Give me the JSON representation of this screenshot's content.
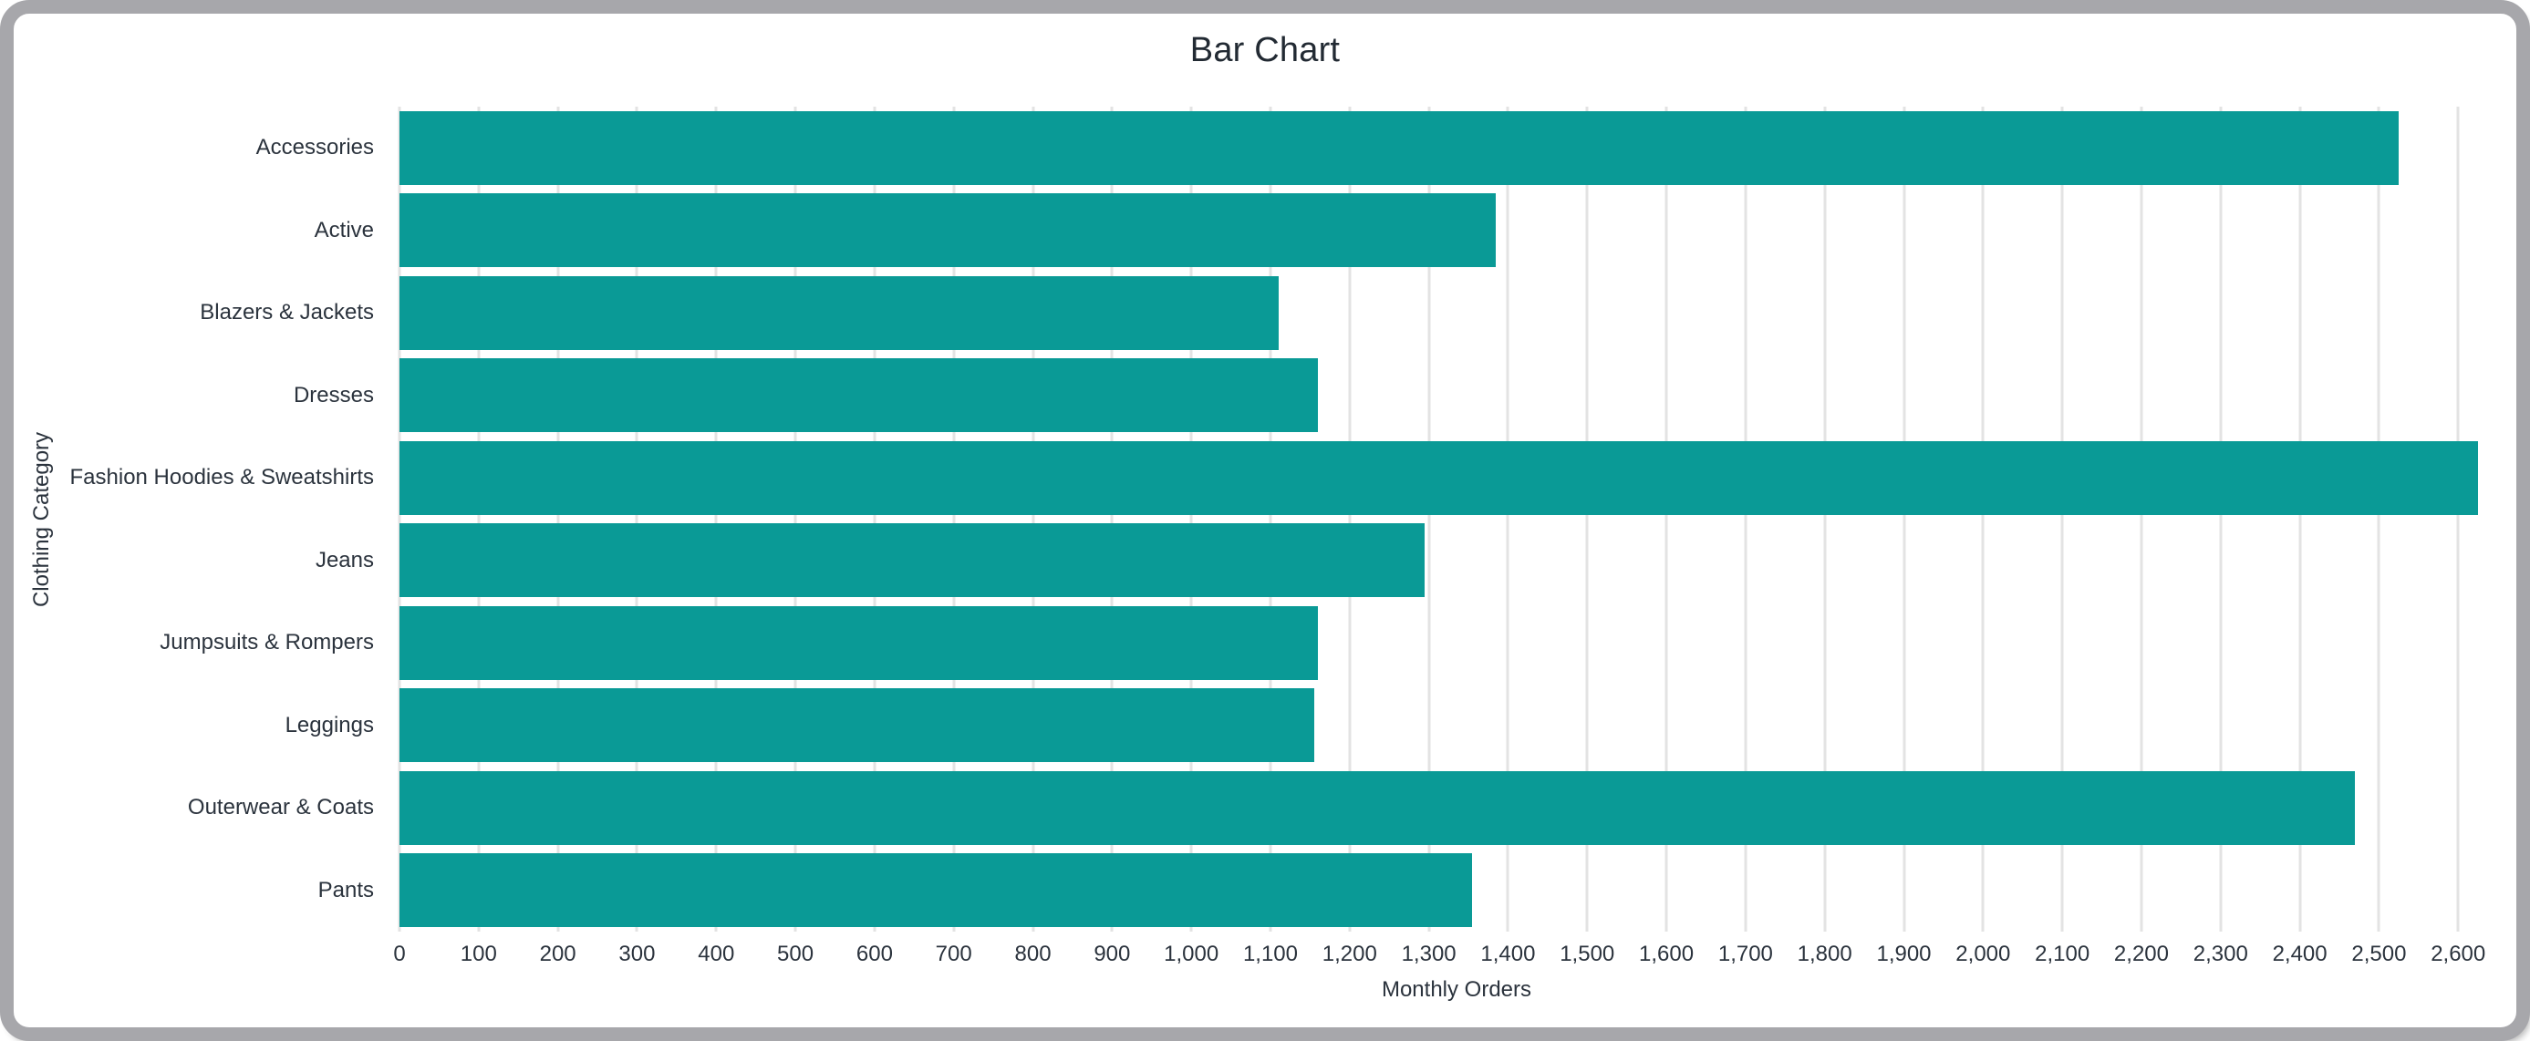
{
  "window": {
    "frame_color": "#a7a7ab",
    "background_color": "#ffffff"
  },
  "chart_data": {
    "type": "bar",
    "orientation": "horizontal",
    "title": "Bar Chart",
    "xlabel": "Monthly Orders",
    "ylabel": "Clothing Category",
    "categories": [
      "Accessories",
      "Active",
      "Blazers & Jackets",
      "Dresses",
      "Fashion Hoodies & Sweatshirts",
      "Jeans",
      "Jumpsuits & Rompers",
      "Leggings",
      "Outerwear & Coats",
      "Pants"
    ],
    "values": [
      2525,
      1385,
      1110,
      1160,
      2625,
      1295,
      1160,
      1155,
      2470,
      1355
    ],
    "xlim": [
      0,
      2670
    ],
    "x_tick_step": 100,
    "x_tick_labels": [
      "0",
      "100",
      "200",
      "300",
      "400",
      "500",
      "600",
      "700",
      "800",
      "900",
      "1,000",
      "1,100",
      "1,200",
      "1,300",
      "1,400",
      "1,500",
      "1,600",
      "1,700",
      "1,800",
      "1,900",
      "2,000",
      "2,100",
      "2,200",
      "2,300",
      "2,400",
      "2,500",
      "2,600"
    ],
    "grid": true,
    "legend": "none",
    "bar_color": "#0a9a96",
    "gridline_color": "#e3e3e3",
    "title_color": "#222a33",
    "label_color": "#2b333d"
  }
}
